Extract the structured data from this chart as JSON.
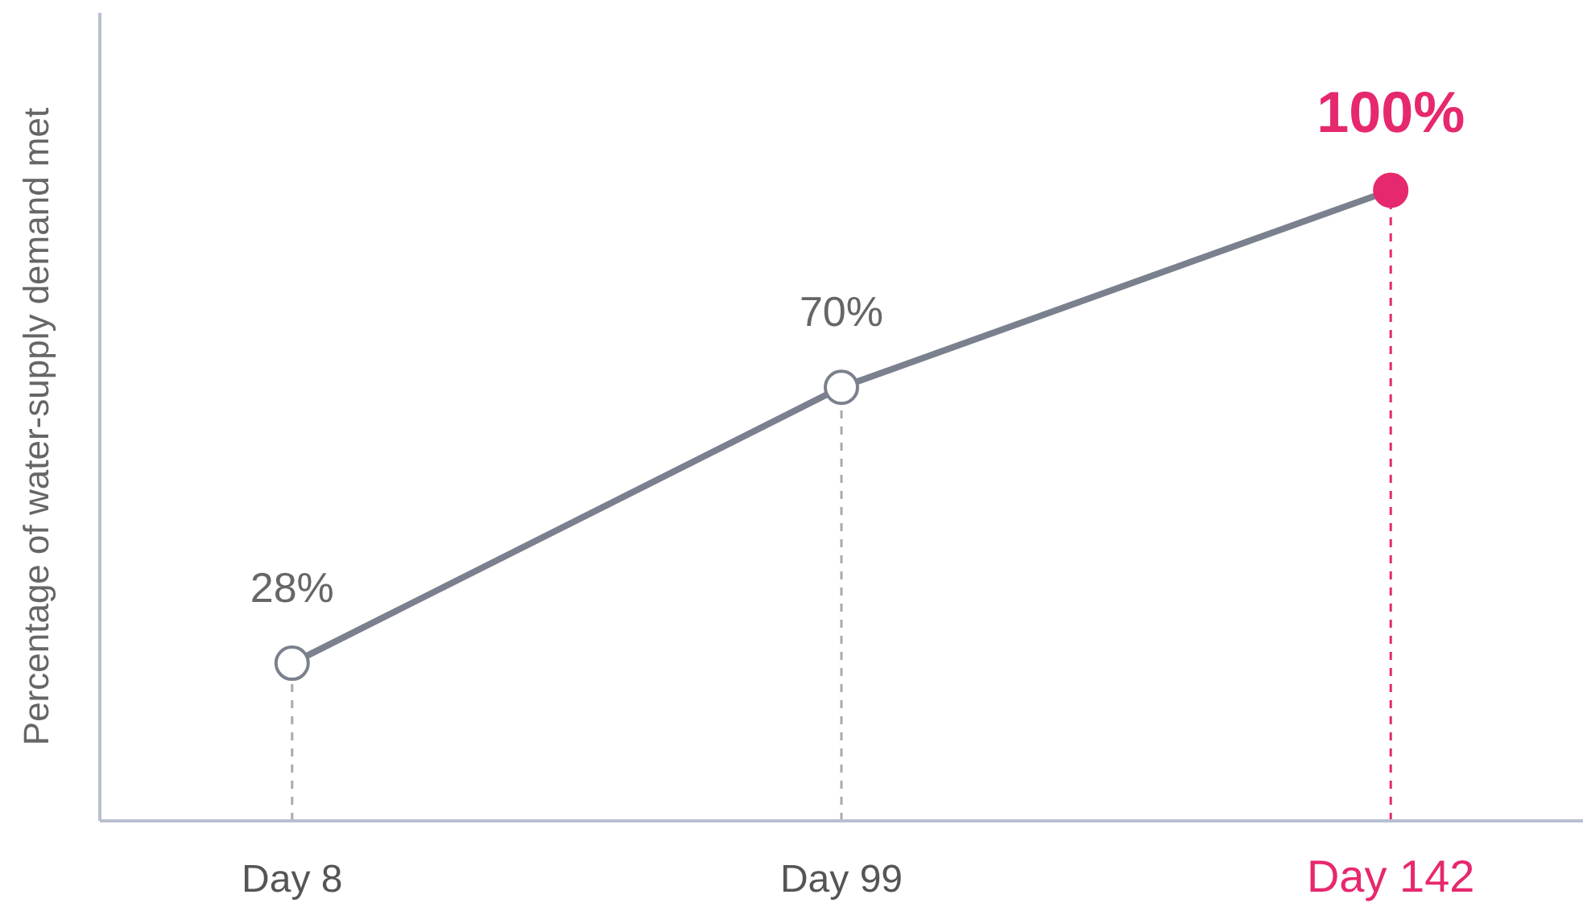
{
  "chart_data": {
    "type": "line",
    "ylabel": "Percentage of water-supply demand met",
    "categories": [
      "Day 8",
      "Day 99",
      "Day 142"
    ],
    "ylim": [
      4,
      127
    ],
    "tick_labels": "x",
    "grid": false,
    "marker": "circle",
    "line_style": "solid",
    "series": [
      {
        "color": "#7b808e",
        "colors": [
          "#ffffff",
          "#ffffff",
          "#e6286e"
        ],
        "values": [
          28,
          70,
          100
        ],
        "value_labels": [
          "28%",
          "70%",
          "100%"
        ]
      }
    ],
    "ref_lines": [
      {
        "axis": "x",
        "value": "Day 8",
        "color": "#aaaaaa",
        "line_style": "dashed"
      },
      {
        "axis": "x",
        "value": "Day 99",
        "color": "#aaaaaa",
        "line_style": "dashed"
      },
      {
        "axis": "x",
        "value": "Day 142",
        "color": "#e6286e",
        "line_style": "dashed"
      }
    ]
  }
}
